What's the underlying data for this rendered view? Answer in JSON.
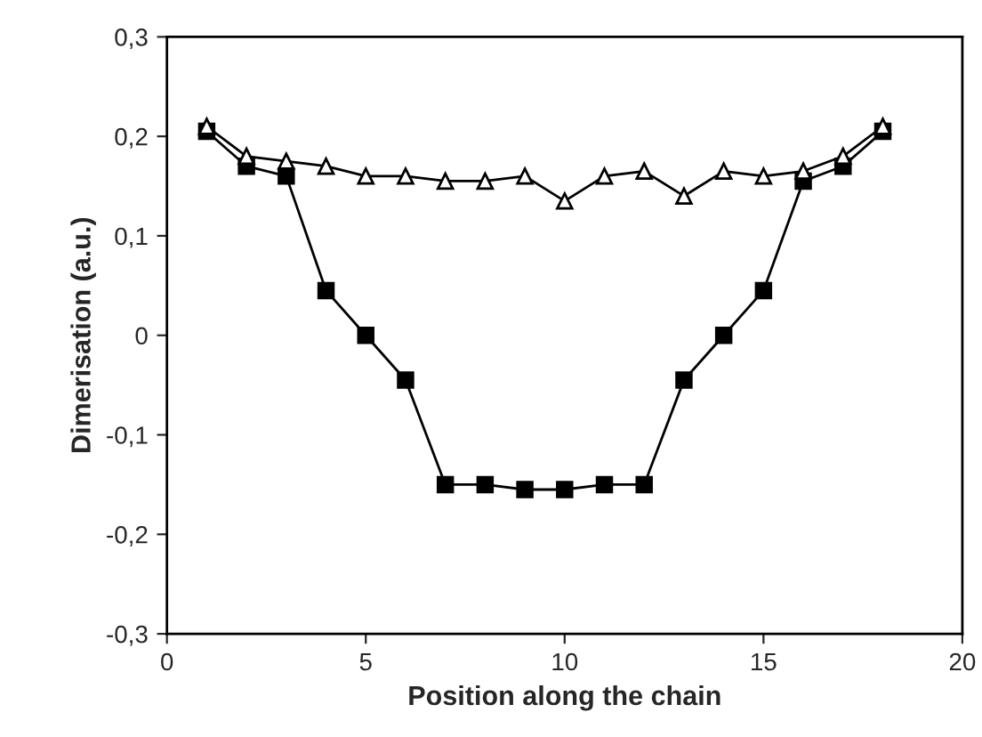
{
  "chart_data": {
    "type": "line",
    "xlabel": "Position along the chain",
    "ylabel": "Dimerisation (a.u.)",
    "xlim": [
      0,
      20
    ],
    "xticks": [
      0,
      5,
      10,
      15,
      20
    ],
    "ylim": [
      -0.3,
      0.3
    ],
    "yticks": [
      {
        "value": -0.3,
        "label": "-0,3"
      },
      {
        "value": -0.2,
        "label": "-0,2"
      },
      {
        "value": -0.1,
        "label": "-0,1"
      },
      0,
      {
        "value": 0.1,
        "label": "0,1"
      },
      {
        "value": 0.2,
        "label": "0,2"
      },
      {
        "value": 0.3,
        "label": "0,3"
      }
    ],
    "x": [
      1,
      2,
      3,
      4,
      5,
      6,
      7,
      8,
      9,
      10,
      11,
      12,
      13,
      14,
      15,
      16,
      17,
      18
    ],
    "grid": false,
    "legend": false,
    "line_style": "solid",
    "series": [
      {
        "color": "#000000",
        "marker": "triangle",
        "values": [
          0.21,
          0.18,
          0.175,
          0.17,
          0.16,
          0.16,
          0.155,
          0.155,
          0.16,
          0.135,
          0.16,
          0.165,
          0.14,
          0.165,
          0.16,
          0.165,
          0.18,
          0.21
        ]
      },
      {
        "color": "#000000",
        "marker": "square",
        "values": [
          0.205,
          0.17,
          0.16,
          0.045,
          0.0,
          -0.045,
          -0.15,
          -0.15,
          -0.155,
          -0.155,
          -0.15,
          -0.15,
          -0.045,
          0.0,
          0.045,
          0.155,
          0.17,
          0.205
        ]
      }
    ]
  }
}
